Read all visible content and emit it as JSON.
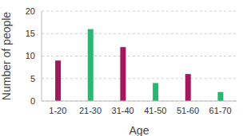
{
  "chart_data": {
    "type": "bar",
    "x_label": "Age",
    "y_label": "Number of people",
    "categories": [
      "1-20",
      "21-30",
      "31-40",
      "41-50",
      "51-60",
      "61-70"
    ],
    "values": [
      9,
      16,
      12,
      4,
      6,
      2
    ],
    "colors": [
      "#a3175c",
      "#2bb673",
      "#a3175c",
      "#2bb673",
      "#a3175c",
      "#2bb673"
    ],
    "ylim": [
      0,
      20
    ],
    "yticks": [
      0,
      5,
      10,
      15,
      20
    ],
    "grid": true
  }
}
